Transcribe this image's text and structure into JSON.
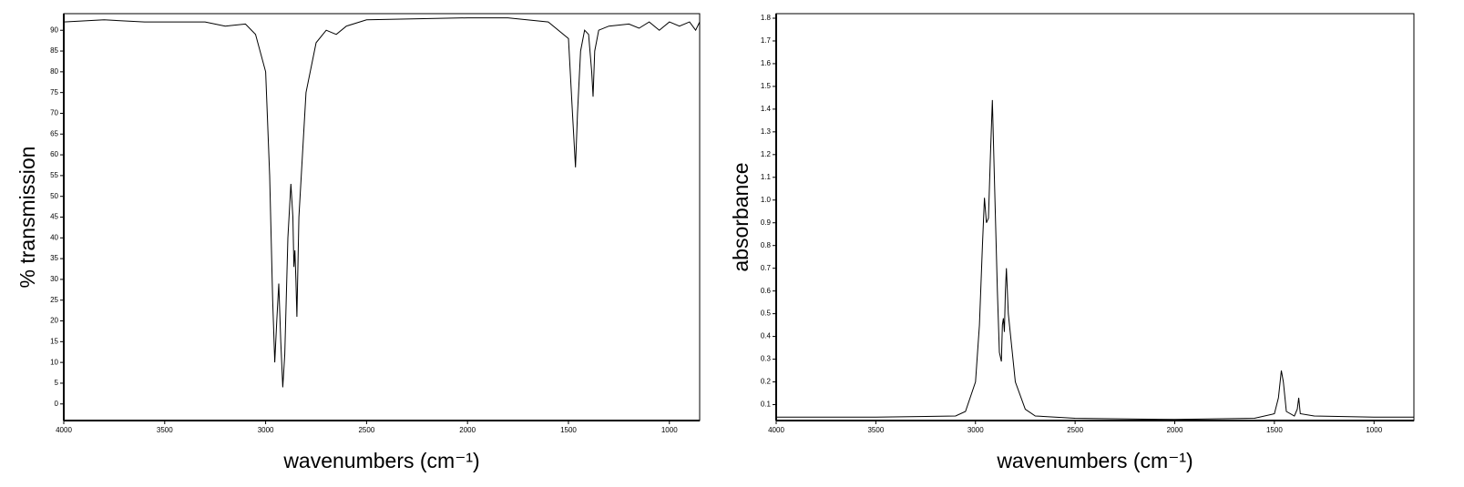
{
  "chart_data": [
    {
      "type": "line",
      "ylabel": "% transmission",
      "xlabel": "wavenumbers (cm⁻¹)",
      "color": "#000000",
      "xlim": [
        4000,
        850
      ],
      "ylim": [
        -4,
        94
      ],
      "xticks": [
        4000,
        3500,
        3000,
        2500,
        2000,
        1500,
        1000
      ],
      "yticks": [
        0,
        5,
        10,
        15,
        20,
        25,
        30,
        35,
        40,
        45,
        50,
        55,
        60,
        65,
        70,
        75,
        80,
        85,
        90
      ],
      "x": [
        4000,
        3800,
        3600,
        3300,
        3200,
        3100,
        3050,
        3000,
        2980,
        2965,
        2955,
        2945,
        2935,
        2925,
        2915,
        2905,
        2890,
        2875,
        2865,
        2860,
        2855,
        2850,
        2845,
        2835,
        2800,
        2750,
        2700,
        2650,
        2600,
        2500,
        2000,
        1800,
        1600,
        1500,
        1480,
        1465,
        1455,
        1440,
        1420,
        1400,
        1385,
        1378,
        1370,
        1350,
        1300,
        1200,
        1150,
        1100,
        1050,
        1000,
        950,
        900,
        870,
        850
      ],
      "values": [
        92,
        92.5,
        92,
        92,
        91,
        91.5,
        89,
        80,
        55,
        25,
        10,
        20,
        29,
        15,
        4,
        12,
        40,
        53,
        45,
        33,
        37,
        30,
        21,
        45,
        75,
        87,
        90,
        89,
        91,
        92.5,
        93,
        93,
        92,
        88,
        70,
        57,
        70,
        85,
        90,
        89,
        80,
        74,
        85,
        90,
        91,
        91.5,
        90.5,
        92,
        90,
        92,
        91,
        92,
        90,
        92
      ]
    },
    {
      "type": "line",
      "ylabel": "absorbance",
      "xlabel": "wavenumbers (cm⁻¹)",
      "color": "#000000",
      "xlim": [
        4000,
        800
      ],
      "ylim": [
        0.03,
        1.82
      ],
      "xticks": [
        4000,
        3500,
        3000,
        2500,
        2000,
        1500,
        1000
      ],
      "yticks": [
        0.1,
        0.2,
        0.3,
        0.4,
        0.5,
        0.6,
        0.7,
        0.8,
        0.9,
        {
          "value": 1,
          "label": "1.0"
        },
        1.1,
        1.2,
        1.3,
        1.4,
        1.5,
        1.6,
        1.7,
        1.8
      ],
      "x": [
        4000,
        3500,
        3100,
        3050,
        3000,
        2980,
        2965,
        2955,
        2945,
        2935,
        2925,
        2915,
        2905,
        2890,
        2880,
        2870,
        2865,
        2860,
        2855,
        2850,
        2845,
        2835,
        2800,
        2750,
        2700,
        2500,
        2000,
        1600,
        1500,
        1480,
        1465,
        1455,
        1440,
        1400,
        1385,
        1378,
        1370,
        1300,
        1000,
        800
      ],
      "values": [
        0.045,
        0.045,
        0.05,
        0.07,
        0.2,
        0.45,
        0.8,
        1.01,
        0.9,
        0.92,
        1.2,
        1.44,
        1.1,
        0.6,
        0.33,
        0.29,
        0.45,
        0.48,
        0.42,
        0.6,
        0.7,
        0.5,
        0.2,
        0.08,
        0.05,
        0.04,
        0.035,
        0.04,
        0.06,
        0.13,
        0.25,
        0.2,
        0.07,
        0.05,
        0.08,
        0.13,
        0.06,
        0.05,
        0.045,
        0.045
      ]
    }
  ]
}
